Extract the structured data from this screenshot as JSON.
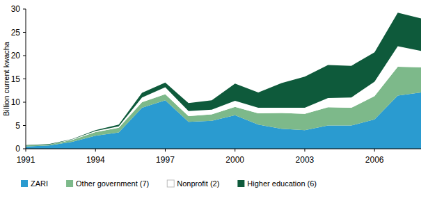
{
  "chart_data": {
    "type": "area",
    "stacked": true,
    "y_label": "Billion current kwacha",
    "x": [
      1991,
      1992,
      1993,
      1994,
      1995,
      1996,
      1997,
      1998,
      1999,
      2000,
      2001,
      2002,
      2003,
      2004,
      2005,
      2006,
      2007,
      2008
    ],
    "xlim": [
      1991,
      2008
    ],
    "xticks": [
      1991,
      1994,
      1997,
      2000,
      2003,
      2006
    ],
    "ylim": [
      0,
      30
    ],
    "yticks": [
      0,
      5,
      10,
      15,
      20,
      25,
      30
    ],
    "legend": "bottom",
    "series": [
      {
        "name": "ZARI",
        "color": "#2a9bd0",
        "values": [
          0.5,
          0.7,
          1.5,
          2.8,
          3.5,
          8.8,
          10.4,
          5.8,
          6.0,
          7.2,
          5.2,
          4.3,
          4.0,
          5.0,
          5.0,
          6.3,
          11.4,
          12.1
        ]
      },
      {
        "name": "Other government (7)",
        "color": "#7db98a",
        "values": [
          0.2,
          0.2,
          0.4,
          0.8,
          1.0,
          1.2,
          1.3,
          1.2,
          1.4,
          1.8,
          2.4,
          3.4,
          3.5,
          3.9,
          3.8,
          5.0,
          6.2,
          5.4
        ]
      },
      {
        "name": "Nonprofit (2)",
        "color": "#ffffff",
        "values": [
          0.0,
          0.0,
          0.1,
          0.2,
          0.3,
          1.0,
          1.5,
          1.1,
          1.0,
          1.3,
          1.2,
          1.1,
          1.3,
          2.0,
          2.2,
          3.1,
          4.4,
          3.5
        ]
      },
      {
        "name": "Higher education (6)",
        "color": "#0e5a3b",
        "values": [
          0.1,
          0.1,
          0.1,
          0.2,
          0.4,
          1.0,
          1.0,
          1.7,
          2.0,
          3.7,
          3.3,
          5.3,
          6.7,
          7.1,
          6.8,
          6.3,
          7.2,
          7.0
        ]
      }
    ]
  }
}
